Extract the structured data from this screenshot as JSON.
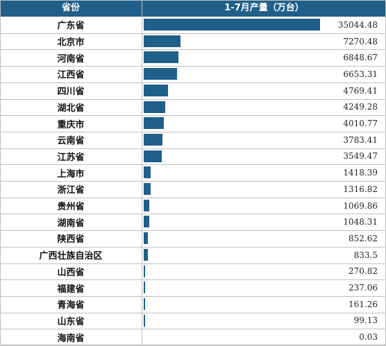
{
  "header": {
    "province": "省份",
    "value": "1-7月产量（万台）"
  },
  "colors": {
    "header_bg": "#1f5f89",
    "bar": "#1f5f89"
  },
  "chart_data": {
    "type": "bar",
    "orientation": "horizontal",
    "xlabel": "省份",
    "ylabel": "1-7月产量（万台）",
    "categories": [
      "广东省",
      "北京市",
      "河南省",
      "江西省",
      "四川省",
      "湖北省",
      "重庆市",
      "云南省",
      "江苏省",
      "上海市",
      "浙江省",
      "贵州省",
      "湖南省",
      "陕西省",
      "广西壮族自治区",
      "山西省",
      "福建省",
      "青海省",
      "山东省",
      "海南省"
    ],
    "values": [
      35044.48,
      7270.48,
      6848.67,
      6653.31,
      4769.41,
      4249.28,
      4010.77,
      3783.41,
      3549.47,
      1418.39,
      1316.82,
      1069.86,
      1048.31,
      852.62,
      833.5,
      270.82,
      237.06,
      161.26,
      99.13,
      0.03
    ],
    "value_labels": [
      "35044.48",
      "7270.48",
      "6848.67",
      "6653.31",
      "4769.41",
      "4249.28",
      "4010.77",
      "3783.41",
      "3549.47",
      "1418.39",
      "1316.82",
      "1069.86",
      "1048.31",
      "852.62",
      "833.5",
      "270.82",
      "237.06",
      "161.26",
      "99.13",
      "0.03"
    ]
  }
}
